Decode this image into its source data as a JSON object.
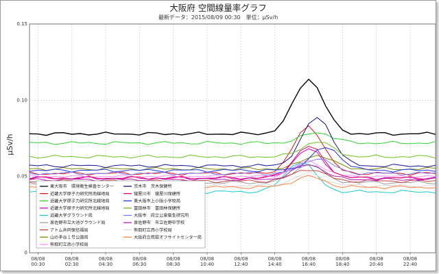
{
  "window": {
    "bg": "#ffffff"
  },
  "chart_data": {
    "type": "line",
    "title": "大阪府 空間線量率グラフ",
    "subtitle": "最新データ：2015/08/09 00:30　単位：μSv/h",
    "ylabel": "μSv/h",
    "ylim": [
      0,
      0.15
    ],
    "yticks": [
      "0",
      "0.05",
      "0.10",
      "0.15"
    ],
    "grid": true,
    "legend_position": "bottom-left-inside",
    "x_start": "2015-08-08 00:00",
    "x_step_minutes": 30,
    "x_count": 49,
    "xtick_labels": [
      {
        "index": 1,
        "date": "08/08",
        "time": "00:30"
      },
      {
        "index": 5,
        "date": "08/08",
        "time": "02:30"
      },
      {
        "index": 9,
        "date": "08/08",
        "time": "04:30"
      },
      {
        "index": 13,
        "date": "08/08",
        "time": "06:30"
      },
      {
        "index": 17,
        "date": "08/08",
        "time": "08:30"
      },
      {
        "index": 21,
        "date": "08/08",
        "time": "10:40"
      },
      {
        "index": 25,
        "date": "08/08",
        "time": "12:40"
      },
      {
        "index": 29,
        "date": "08/08",
        "time": "14:40"
      },
      {
        "index": 33,
        "date": "08/08",
        "time": "16:40"
      },
      {
        "index": 37,
        "date": "08/08",
        "time": "18:40"
      },
      {
        "index": 41,
        "date": "08/08",
        "time": "20:40"
      },
      {
        "index": 45,
        "date": "08/08",
        "time": "22:40"
      }
    ],
    "series": [
      {
        "name": "東大阪市　環境衛生検査センター",
        "color": "#000000",
        "base": 0.078,
        "peak": 0.114,
        "peak_index": 33
      },
      {
        "name": "近畿大学原子力研究所南線地局",
        "color": "#e01010",
        "base": 0.052,
        "peak": 0.083,
        "peak_index": 33
      },
      {
        "name": "近畿大学原子力研究所北線地局",
        "color": "#2fd02f",
        "base": 0.072,
        "peak": 0.079,
        "peak_index": 34
      },
      {
        "name": "近畿大学原子力研究所北線地局",
        "color": "#d000d0",
        "base": 0.049,
        "peak": 0.068,
        "peak_index": 33
      },
      {
        "name": "近畿大学グラウンド局",
        "color": "#18c8c8",
        "base": 0.04,
        "peak": 0.06,
        "peak_index": 32
      },
      {
        "name": "泉佐野市立大池グラウンド局",
        "color": "#9a9a9a",
        "base": 0.046,
        "peak": 0.058,
        "peak_index": 33
      },
      {
        "name": "アトム共同保信福局",
        "color": "#c84040",
        "base": 0.047,
        "peak": 0.055,
        "peak_index": 33
      },
      {
        "name": "山の手台１号公園局",
        "color": "#7a8a00",
        "base": 0.055,
        "peak": 0.064,
        "peak_index": 34
      },
      {
        "name": "熊取町立南小学校局",
        "color": "#ff90ff",
        "base": 0.05,
        "peak": 0.06,
        "peak_index": 33
      },
      {
        "name": "茨木市　茨木保健所",
        "color": "#10108a",
        "base": 0.057,
        "peak": 0.089,
        "peak_index": 34
      },
      {
        "name": "寝屋川市　寝屋川保健所",
        "color": "#e00060",
        "base": 0.049,
        "peak": 0.07,
        "peak_index": 33
      },
      {
        "name": "東大阪市上小阪小学校局",
        "color": "#2030e0",
        "base": 0.054,
        "peak": 0.069,
        "peak_index": 35
      },
      {
        "name": "富田林市　富田林保健所",
        "color": "#70c020",
        "base": 0.063,
        "peak": 0.073,
        "peak_index": 34
      },
      {
        "name": "大阪市　府立公衆衛生研究所",
        "color": "#7a7aff",
        "base": 0.052,
        "peak": 0.062,
        "peak_index": 34
      },
      {
        "name": "泉佐野市　市立佐野中学校",
        "color": "#b020b0",
        "base": 0.048,
        "peak": 0.058,
        "peak_index": 33
      },
      {
        "name": "熊取町立西小学校局",
        "color": "#d8d8d8",
        "base": 0.044,
        "peak": 0.052,
        "peak_index": 33
      },
      {
        "name": "大阪府立熊取オフサイトセンター局",
        "color": "#ff8040",
        "base": 0.043,
        "peak": 0.05,
        "peak_index": 33
      }
    ]
  }
}
